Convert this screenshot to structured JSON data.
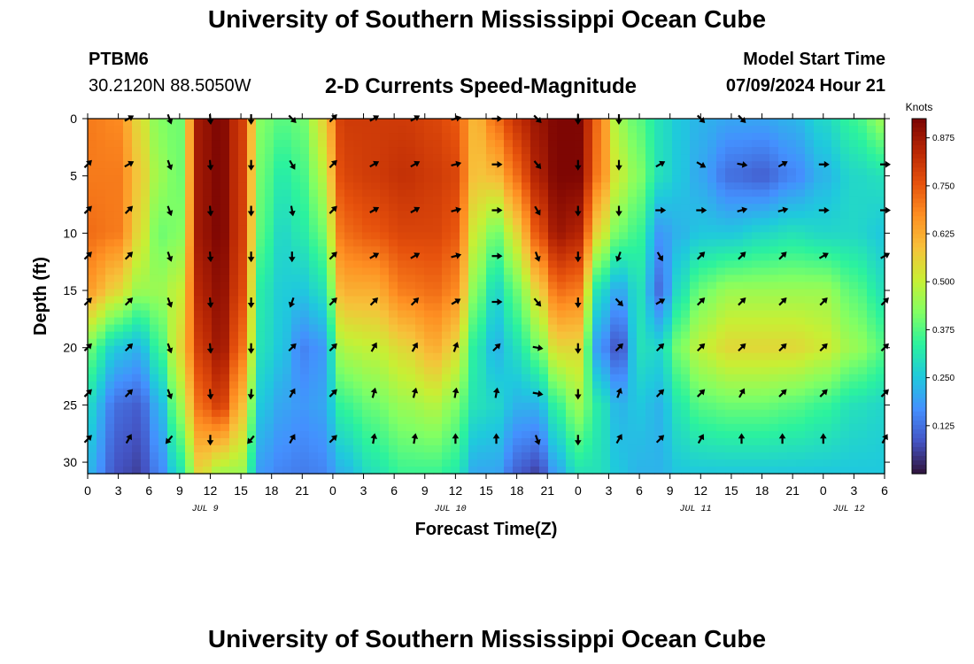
{
  "title": "University of Southern Mississippi Ocean Cube",
  "station": {
    "id": "PTBM6",
    "coords": "30.2120N  88.5050W"
  },
  "model_start": {
    "label": "Model Start Time",
    "value": "07/09/2024 Hour 21"
  },
  "footer_title": "University of Southern Mississippi Ocean Cube",
  "chart_data": {
    "type": "heatmap",
    "title": "2-D Currents Speed-Magnitude",
    "xlabel": "Forecast Time(Z)",
    "ylabel": "Depth (ft)",
    "x_unit": "forecast hours (0 = Jul 9 00Z)",
    "xlim": [
      0,
      78
    ],
    "ylim": [
      0,
      31
    ],
    "x_tick_values": [
      0,
      3,
      6,
      9,
      12,
      15,
      18,
      21,
      24,
      27,
      30,
      33,
      36,
      39,
      42,
      45,
      48,
      51,
      54,
      57,
      60,
      63,
      66,
      69,
      72,
      75,
      78
    ],
    "x_tick_labels": [
      "0",
      "3",
      "6",
      "9",
      "12",
      "15",
      "18",
      "21",
      "0",
      "3",
      "6",
      "9",
      "12",
      "15",
      "18",
      "21",
      "0",
      "3",
      "6",
      "9",
      "12",
      "15",
      "18",
      "21",
      "0",
      "3",
      "6"
    ],
    "y_ticks": [
      0,
      5,
      10,
      15,
      20,
      25,
      30
    ],
    "date_labels": [
      {
        "x": 11.5,
        "label": "JUL 9"
      },
      {
        "x": 35.5,
        "label": "JUL 10"
      },
      {
        "x": 59.5,
        "label": "JUL 11"
      },
      {
        "x": 74.5,
        "label": "JUL 12"
      }
    ],
    "colorbar": {
      "label": "Knots",
      "range": [
        0.0,
        0.925
      ],
      "ticks": [
        "0.125",
        "0.250",
        "0.375",
        "0.500",
        "0.625",
        "0.750",
        "0.875"
      ],
      "colors": [
        "#30123b",
        "#4454c4",
        "#4490fe",
        "#1fc9dd",
        "#2bf29e",
        "#82ff63",
        "#c8ef34",
        "#f7c13a",
        "#fe8f22",
        "#e6510c",
        "#b82604",
        "#7a0403"
      ]
    },
    "speed_columns_ft": [
      0,
      5,
      10,
      15,
      20,
      25,
      31
    ],
    "speed_profiles": [
      {
        "t": 0,
        "v": [
          0.7,
          0.7,
          0.72,
          0.65,
          0.4,
          0.28,
          0.22
        ]
      },
      {
        "t": 3,
        "v": [
          0.68,
          0.7,
          0.7,
          0.55,
          0.25,
          0.12,
          0.08
        ]
      },
      {
        "t": 5,
        "v": [
          0.55,
          0.58,
          0.55,
          0.45,
          0.22,
          0.1,
          0.06
        ]
      },
      {
        "t": 7,
        "v": [
          0.42,
          0.45,
          0.4,
          0.45,
          0.35,
          0.22,
          0.15
        ]
      },
      {
        "t": 9,
        "v": [
          0.4,
          0.4,
          0.42,
          0.5,
          0.55,
          0.45,
          0.3
        ]
      },
      {
        "t": 11,
        "v": [
          0.88,
          0.88,
          0.88,
          0.85,
          0.8,
          0.72,
          0.55
        ]
      },
      {
        "t": 13,
        "v": [
          0.92,
          0.92,
          0.92,
          0.9,
          0.88,
          0.8,
          0.45
        ]
      },
      {
        "t": 15,
        "v": [
          0.8,
          0.8,
          0.8,
          0.78,
          0.72,
          0.6,
          0.45
        ]
      },
      {
        "t": 17,
        "v": [
          0.42,
          0.4,
          0.38,
          0.32,
          0.3,
          0.25,
          0.18
        ]
      },
      {
        "t": 19,
        "v": [
          0.38,
          0.32,
          0.28,
          0.26,
          0.25,
          0.2,
          0.15
        ]
      },
      {
        "t": 21,
        "v": [
          0.4,
          0.36,
          0.32,
          0.25,
          0.15,
          0.18,
          0.14
        ]
      },
      {
        "t": 23,
        "v": [
          0.55,
          0.48,
          0.4,
          0.3,
          0.18,
          0.2,
          0.15
        ]
      },
      {
        "t": 25,
        "v": [
          0.8,
          0.78,
          0.72,
          0.62,
          0.48,
          0.35,
          0.22
        ]
      },
      {
        "t": 28,
        "v": [
          0.8,
          0.8,
          0.75,
          0.62,
          0.5,
          0.4,
          0.3
        ]
      },
      {
        "t": 31,
        "v": [
          0.8,
          0.82,
          0.78,
          0.7,
          0.55,
          0.45,
          0.35
        ]
      },
      {
        "t": 34,
        "v": [
          0.78,
          0.8,
          0.78,
          0.72,
          0.62,
          0.48,
          0.35
        ]
      },
      {
        "t": 36,
        "v": [
          0.75,
          0.78,
          0.75,
          0.68,
          0.55,
          0.42,
          0.32
        ]
      },
      {
        "t": 38,
        "v": [
          0.6,
          0.58,
          0.5,
          0.42,
          0.32,
          0.3,
          0.2
        ]
      },
      {
        "t": 40,
        "v": [
          0.72,
          0.6,
          0.4,
          0.28,
          0.22,
          0.28,
          0.2
        ]
      },
      {
        "t": 42,
        "v": [
          0.82,
          0.72,
          0.55,
          0.4,
          0.3,
          0.22,
          0.1
        ]
      },
      {
        "t": 44,
        "v": [
          0.88,
          0.85,
          0.75,
          0.55,
          0.4,
          0.22,
          0.06
        ]
      },
      {
        "t": 46,
        "v": [
          0.92,
          0.92,
          0.88,
          0.72,
          0.55,
          0.35,
          0.2
        ]
      },
      {
        "t": 48,
        "v": [
          0.92,
          0.92,
          0.85,
          0.7,
          0.55,
          0.45,
          0.3
        ]
      },
      {
        "t": 50,
        "v": [
          0.72,
          0.7,
          0.55,
          0.3,
          0.18,
          0.32,
          0.3
        ]
      },
      {
        "t": 52,
        "v": [
          0.45,
          0.5,
          0.4,
          0.2,
          0.08,
          0.22,
          0.25
        ]
      },
      {
        "t": 54,
        "v": [
          0.38,
          0.42,
          0.35,
          0.3,
          0.3,
          0.25,
          0.22
        ]
      },
      {
        "t": 56,
        "v": [
          0.3,
          0.3,
          0.18,
          0.12,
          0.28,
          0.22,
          0.22
        ]
      },
      {
        "t": 58,
        "v": [
          0.25,
          0.25,
          0.22,
          0.3,
          0.42,
          0.32,
          0.25
        ]
      },
      {
        "t": 60,
        "v": [
          0.22,
          0.2,
          0.25,
          0.4,
          0.5,
          0.38,
          0.25
        ]
      },
      {
        "t": 63,
        "v": [
          0.2,
          0.12,
          0.25,
          0.45,
          0.55,
          0.4,
          0.25
        ]
      },
      {
        "t": 66,
        "v": [
          0.2,
          0.1,
          0.28,
          0.45,
          0.55,
          0.4,
          0.25
        ]
      },
      {
        "t": 69,
        "v": [
          0.22,
          0.15,
          0.3,
          0.45,
          0.55,
          0.38,
          0.25
        ]
      },
      {
        "t": 72,
        "v": [
          0.28,
          0.22,
          0.28,
          0.45,
          0.52,
          0.35,
          0.25
        ]
      },
      {
        "t": 75,
        "v": [
          0.35,
          0.28,
          0.28,
          0.38,
          0.45,
          0.3,
          0.25
        ]
      },
      {
        "t": 78,
        "v": [
          0.45,
          0.3,
          0.25,
          0.3,
          0.38,
          0.28,
          0.25
        ]
      }
    ],
    "vector_depths_ft": [
      0,
      4,
      8,
      12,
      16,
      20,
      24,
      28
    ],
    "vector_angle_convention": "degrees, 0 = up (shoaling), 90 = right, 180 = down",
    "vectors": [
      {
        "t": 0,
        "dirs": [
          null,
          45,
          45,
          45,
          45,
          45,
          45,
          45
        ]
      },
      {
        "t": 4,
        "dirs": [
          60,
          60,
          45,
          45,
          45,
          45,
          45,
          30
        ]
      },
      {
        "t": 8,
        "dirs": [
          160,
          160,
          160,
          160,
          160,
          160,
          160,
          220
        ]
      },
      {
        "t": 12,
        "dirs": [
          175,
          175,
          175,
          175,
          175,
          175,
          175,
          180
        ]
      },
      {
        "t": 16,
        "dirs": [
          180,
          180,
          180,
          180,
          180,
          180,
          185,
          220
        ]
      },
      {
        "t": 20,
        "dirs": [
          135,
          150,
          170,
          180,
          200,
          45,
          30,
          30
        ]
      },
      {
        "t": 24,
        "dirs": [
          45,
          45,
          45,
          45,
          45,
          45,
          45,
          45
        ]
      },
      {
        "t": 28,
        "dirs": [
          60,
          60,
          60,
          60,
          45,
          30,
          15,
          10
        ]
      },
      {
        "t": 32,
        "dirs": [
          60,
          60,
          60,
          60,
          45,
          30,
          15,
          10
        ]
      },
      {
        "t": 36,
        "dirs": [
          75,
          75,
          75,
          75,
          60,
          20,
          10,
          0
        ]
      },
      {
        "t": 40,
        "dirs": [
          90,
          90,
          90,
          90,
          90,
          45,
          10,
          0
        ]
      },
      {
        "t": 44,
        "dirs": [
          135,
          140,
          150,
          160,
          140,
          100,
          100,
          160
        ]
      },
      {
        "t": 48,
        "dirs": [
          180,
          180,
          180,
          180,
          180,
          180,
          180,
          180
        ]
      },
      {
        "t": 52,
        "dirs": [
          180,
          180,
          180,
          200,
          135,
          45,
          20,
          30
        ]
      },
      {
        "t": 56,
        "dirs": [
          null,
          60,
          90,
          150,
          60,
          45,
          45,
          45
        ]
      },
      {
        "t": 60,
        "dirs": [
          135,
          120,
          90,
          45,
          45,
          45,
          45,
          30
        ]
      },
      {
        "t": 64,
        "dirs": [
          135,
          100,
          75,
          45,
          45,
          45,
          30,
          0
        ]
      },
      {
        "t": 68,
        "dirs": [
          null,
          60,
          75,
          45,
          45,
          45,
          45,
          0
        ]
      },
      {
        "t": 72,
        "dirs": [
          null,
          90,
          90,
          60,
          45,
          45,
          45,
          0
        ]
      },
      {
        "t": 78,
        "dirs": [
          null,
          90,
          90,
          60,
          45,
          45,
          45,
          30
        ]
      }
    ]
  }
}
